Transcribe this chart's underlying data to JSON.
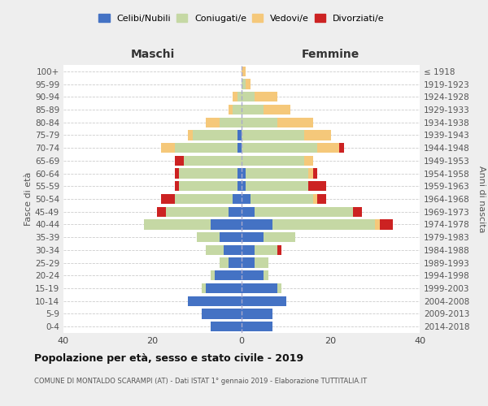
{
  "age_groups": [
    "0-4",
    "5-9",
    "10-14",
    "15-19",
    "20-24",
    "25-29",
    "30-34",
    "35-39",
    "40-44",
    "45-49",
    "50-54",
    "55-59",
    "60-64",
    "65-69",
    "70-74",
    "75-79",
    "80-84",
    "85-89",
    "90-94",
    "95-99",
    "100+"
  ],
  "birth_years": [
    "2014-2018",
    "2009-2013",
    "2004-2008",
    "1999-2003",
    "1994-1998",
    "1989-1993",
    "1984-1988",
    "1979-1983",
    "1974-1978",
    "1969-1973",
    "1964-1968",
    "1959-1963",
    "1954-1958",
    "1949-1953",
    "1944-1948",
    "1939-1943",
    "1934-1938",
    "1929-1933",
    "1924-1928",
    "1919-1923",
    "≤ 1918"
  ],
  "colors": {
    "celibe": "#4472c4",
    "coniugato": "#c5d8a4",
    "vedovo": "#f5c87a",
    "divorziato": "#cc2222"
  },
  "males": {
    "celibe": [
      7,
      9,
      12,
      8,
      6,
      3,
      4,
      5,
      7,
      3,
      2,
      1,
      1,
      0,
      1,
      1,
      0,
      0,
      0,
      0,
      0
    ],
    "coniugato": [
      0,
      0,
      0,
      1,
      1,
      2,
      4,
      5,
      15,
      14,
      13,
      13,
      13,
      13,
      14,
      10,
      5,
      2,
      1,
      0,
      0
    ],
    "vedovo": [
      0,
      0,
      0,
      0,
      0,
      0,
      0,
      0,
      0,
      0,
      0,
      0,
      0,
      0,
      3,
      1,
      3,
      1,
      1,
      0,
      0
    ],
    "divorziato": [
      0,
      0,
      0,
      0,
      0,
      0,
      0,
      0,
      0,
      2,
      3,
      1,
      1,
      2,
      0,
      0,
      0,
      0,
      0,
      0,
      0
    ]
  },
  "females": {
    "celibe": [
      7,
      7,
      10,
      8,
      5,
      3,
      3,
      5,
      7,
      3,
      2,
      1,
      1,
      0,
      0,
      0,
      0,
      0,
      0,
      0,
      0
    ],
    "coniugato": [
      0,
      0,
      0,
      1,
      1,
      3,
      5,
      7,
      23,
      22,
      14,
      14,
      14,
      14,
      17,
      14,
      8,
      5,
      3,
      1,
      0
    ],
    "vedovo": [
      0,
      0,
      0,
      0,
      0,
      0,
      0,
      0,
      1,
      0,
      1,
      0,
      1,
      2,
      5,
      6,
      8,
      6,
      5,
      1,
      1
    ],
    "divorziato": [
      0,
      0,
      0,
      0,
      0,
      0,
      1,
      0,
      3,
      2,
      2,
      4,
      1,
      0,
      1,
      0,
      0,
      0,
      0,
      0,
      0
    ]
  },
  "title": "Popolazione per età, sesso e stato civile - 2019",
  "subtitle": "COMUNE DI MONTALDO SCARAMPI (AT) - Dati ISTAT 1° gennaio 2019 - Elaborazione TUTTITALIA.IT",
  "xlabel_left": "Maschi",
  "xlabel_right": "Femmine",
  "ylabel_left": "Fasce di età",
  "ylabel_right": "Anni di nascita",
  "xlim": 40,
  "bg_color": "#eeeeee",
  "plot_bg": "#ffffff",
  "legend_labels": [
    "Celibi/Nubili",
    "Coniugati/e",
    "Vedovi/e",
    "Divorziati/e"
  ]
}
